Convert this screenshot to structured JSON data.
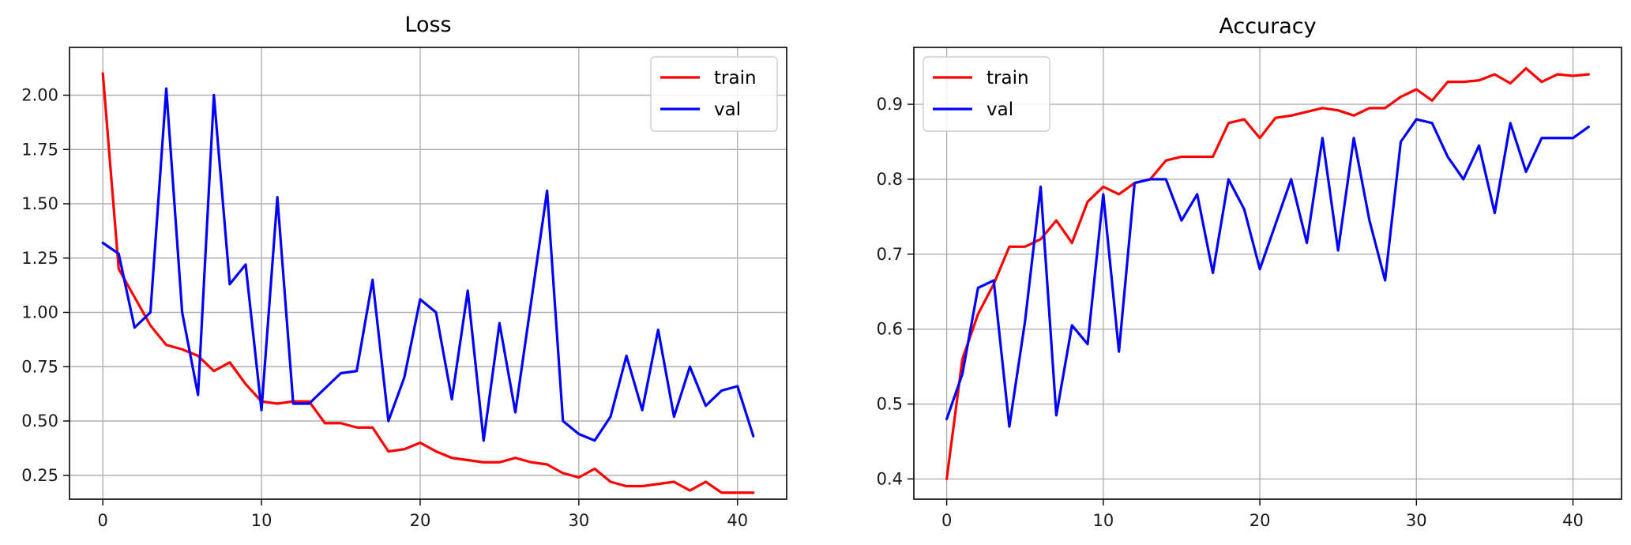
{
  "chart_data": [
    {
      "type": "line",
      "title": "Loss",
      "xlabel": "",
      "ylabel": "",
      "xlim": [
        -2.1,
        43.1
      ],
      "ylim": [
        0.14,
        2.22
      ],
      "xticks": [
        0,
        10,
        20,
        30,
        40
      ],
      "xtick_labels": [
        "0",
        "10",
        "20",
        "30",
        "40"
      ],
      "yticks": [
        0.25,
        0.5,
        0.75,
        1.0,
        1.25,
        1.5,
        1.75,
        2.0
      ],
      "ytick_labels": [
        "0.25",
        "0.50",
        "0.75",
        "1.00",
        "1.25",
        "1.50",
        "1.75",
        "2.00"
      ],
      "grid": true,
      "legend_position": "top-right",
      "x": [
        0,
        1,
        2,
        3,
        4,
        5,
        6,
        7,
        8,
        9,
        10,
        11,
        12,
        13,
        14,
        15,
        16,
        17,
        18,
        19,
        20,
        21,
        22,
        23,
        24,
        25,
        26,
        27,
        28,
        29,
        30,
        31,
        32,
        33,
        34,
        35,
        36,
        37,
        38,
        39,
        40,
        41
      ],
      "series": [
        {
          "name": "train",
          "color": "#ff0000",
          "values": [
            2.1,
            1.2,
            1.07,
            0.94,
            0.85,
            0.83,
            0.8,
            0.73,
            0.77,
            0.67,
            0.59,
            0.58,
            0.59,
            0.59,
            0.49,
            0.49,
            0.47,
            0.47,
            0.36,
            0.37,
            0.4,
            0.36,
            0.33,
            0.32,
            0.31,
            0.31,
            0.33,
            0.31,
            0.3,
            0.26,
            0.24,
            0.28,
            0.22,
            0.2,
            0.2,
            0.21,
            0.22,
            0.18,
            0.22,
            0.17,
            0.17,
            0.17
          ]
        },
        {
          "name": "val",
          "color": "#0000ff",
          "values": [
            1.32,
            1.27,
            0.93,
            1.0,
            2.03,
            1.0,
            0.62,
            2.0,
            1.13,
            1.22,
            0.55,
            1.53,
            0.58,
            0.58,
            0.65,
            0.72,
            0.73,
            1.15,
            0.5,
            0.7,
            1.06,
            1.0,
            0.6,
            1.1,
            0.41,
            0.95,
            0.54,
            1.05,
            1.56,
            0.5,
            0.44,
            0.41,
            0.52,
            0.8,
            0.55,
            0.92,
            0.52,
            0.75,
            0.57,
            0.64,
            0.66,
            0.43
          ]
        }
      ]
    },
    {
      "type": "line",
      "title": "Accuracy",
      "xlabel": "",
      "ylabel": "",
      "xlim": [
        -2.1,
        43.1
      ],
      "ylim": [
        0.373,
        0.976
      ],
      "xticks": [
        0,
        10,
        20,
        30,
        40
      ],
      "xtick_labels": [
        "0",
        "10",
        "20",
        "30",
        "40"
      ],
      "yticks": [
        0.4,
        0.5,
        0.6,
        0.7,
        0.8,
        0.9
      ],
      "ytick_labels": [
        "0.4",
        "0.5",
        "0.6",
        "0.7",
        "0.8",
        "0.9"
      ],
      "grid": true,
      "legend_position": "top-left",
      "x": [
        0,
        1,
        2,
        3,
        4,
        5,
        6,
        7,
        8,
        9,
        10,
        11,
        12,
        13,
        14,
        15,
        16,
        17,
        18,
        19,
        20,
        21,
        22,
        23,
        24,
        25,
        26,
        27,
        28,
        29,
        30,
        31,
        32,
        33,
        34,
        35,
        36,
        37,
        38,
        39,
        40,
        41
      ],
      "series": [
        {
          "name": "train",
          "color": "#ff0000",
          "values": [
            0.4,
            0.56,
            0.62,
            0.66,
            0.71,
            0.71,
            0.72,
            0.745,
            0.715,
            0.77,
            0.79,
            0.78,
            0.795,
            0.8,
            0.825,
            0.83,
            0.83,
            0.83,
            0.875,
            0.88,
            0.855,
            0.882,
            0.885,
            0.89,
            0.895,
            0.892,
            0.885,
            0.895,
            0.895,
            0.91,
            0.92,
            0.905,
            0.93,
            0.93,
            0.932,
            0.94,
            0.928,
            0.948,
            0.93,
            0.94,
            0.938,
            0.94
          ]
        },
        {
          "name": "val",
          "color": "#0000ff",
          "values": [
            0.48,
            0.54,
            0.655,
            0.665,
            0.47,
            0.61,
            0.79,
            0.485,
            0.605,
            0.58,
            0.78,
            0.57,
            0.795,
            0.8,
            0.8,
            0.745,
            0.78,
            0.675,
            0.8,
            0.76,
            0.68,
            0.74,
            0.8,
            0.715,
            0.855,
            0.705,
            0.855,
            0.745,
            0.665,
            0.85,
            0.88,
            0.875,
            0.83,
            0.8,
            0.845,
            0.755,
            0.875,
            0.81,
            0.855,
            0.855,
            0.855,
            0.87
          ]
        }
      ]
    }
  ]
}
